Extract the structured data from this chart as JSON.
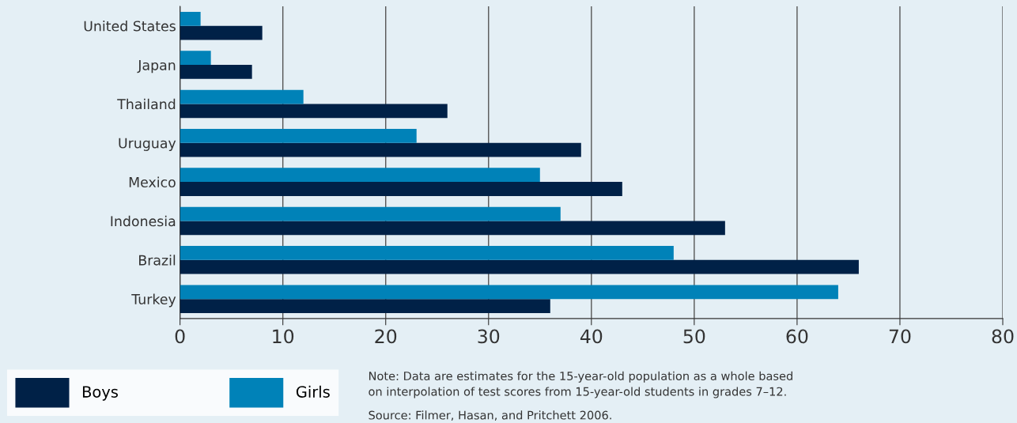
{
  "chart_data": {
    "type": "bar",
    "orientation": "horizontal",
    "categories": [
      "United States",
      "Japan",
      "Thailand",
      "Uruguay",
      "Mexico",
      "Indonesia",
      "Brazil",
      "Turkey"
    ],
    "series": [
      {
        "name": "Boys",
        "color": "#002147",
        "values": [
          8,
          7,
          26,
          39,
          43,
          53,
          66,
          36
        ]
      },
      {
        "name": "Girls",
        "color": "#0082b8",
        "values": [
          2,
          3,
          12,
          23,
          35,
          37,
          48,
          64
        ]
      }
    ],
    "xlim": [
      0,
      80
    ],
    "xticks": [
      0,
      10,
      20,
      30,
      40,
      50,
      60,
      70,
      80
    ],
    "grid": "x",
    "legend": "bottom left",
    "annotations": [
      "Note: Data are estimates for the 15-year-old population as a whole based\non interpolation of test scores from 15-year-old students in grades 7–12.",
      "Source: Filmer, Hasan, and Pritchett 2006."
    ]
  }
}
